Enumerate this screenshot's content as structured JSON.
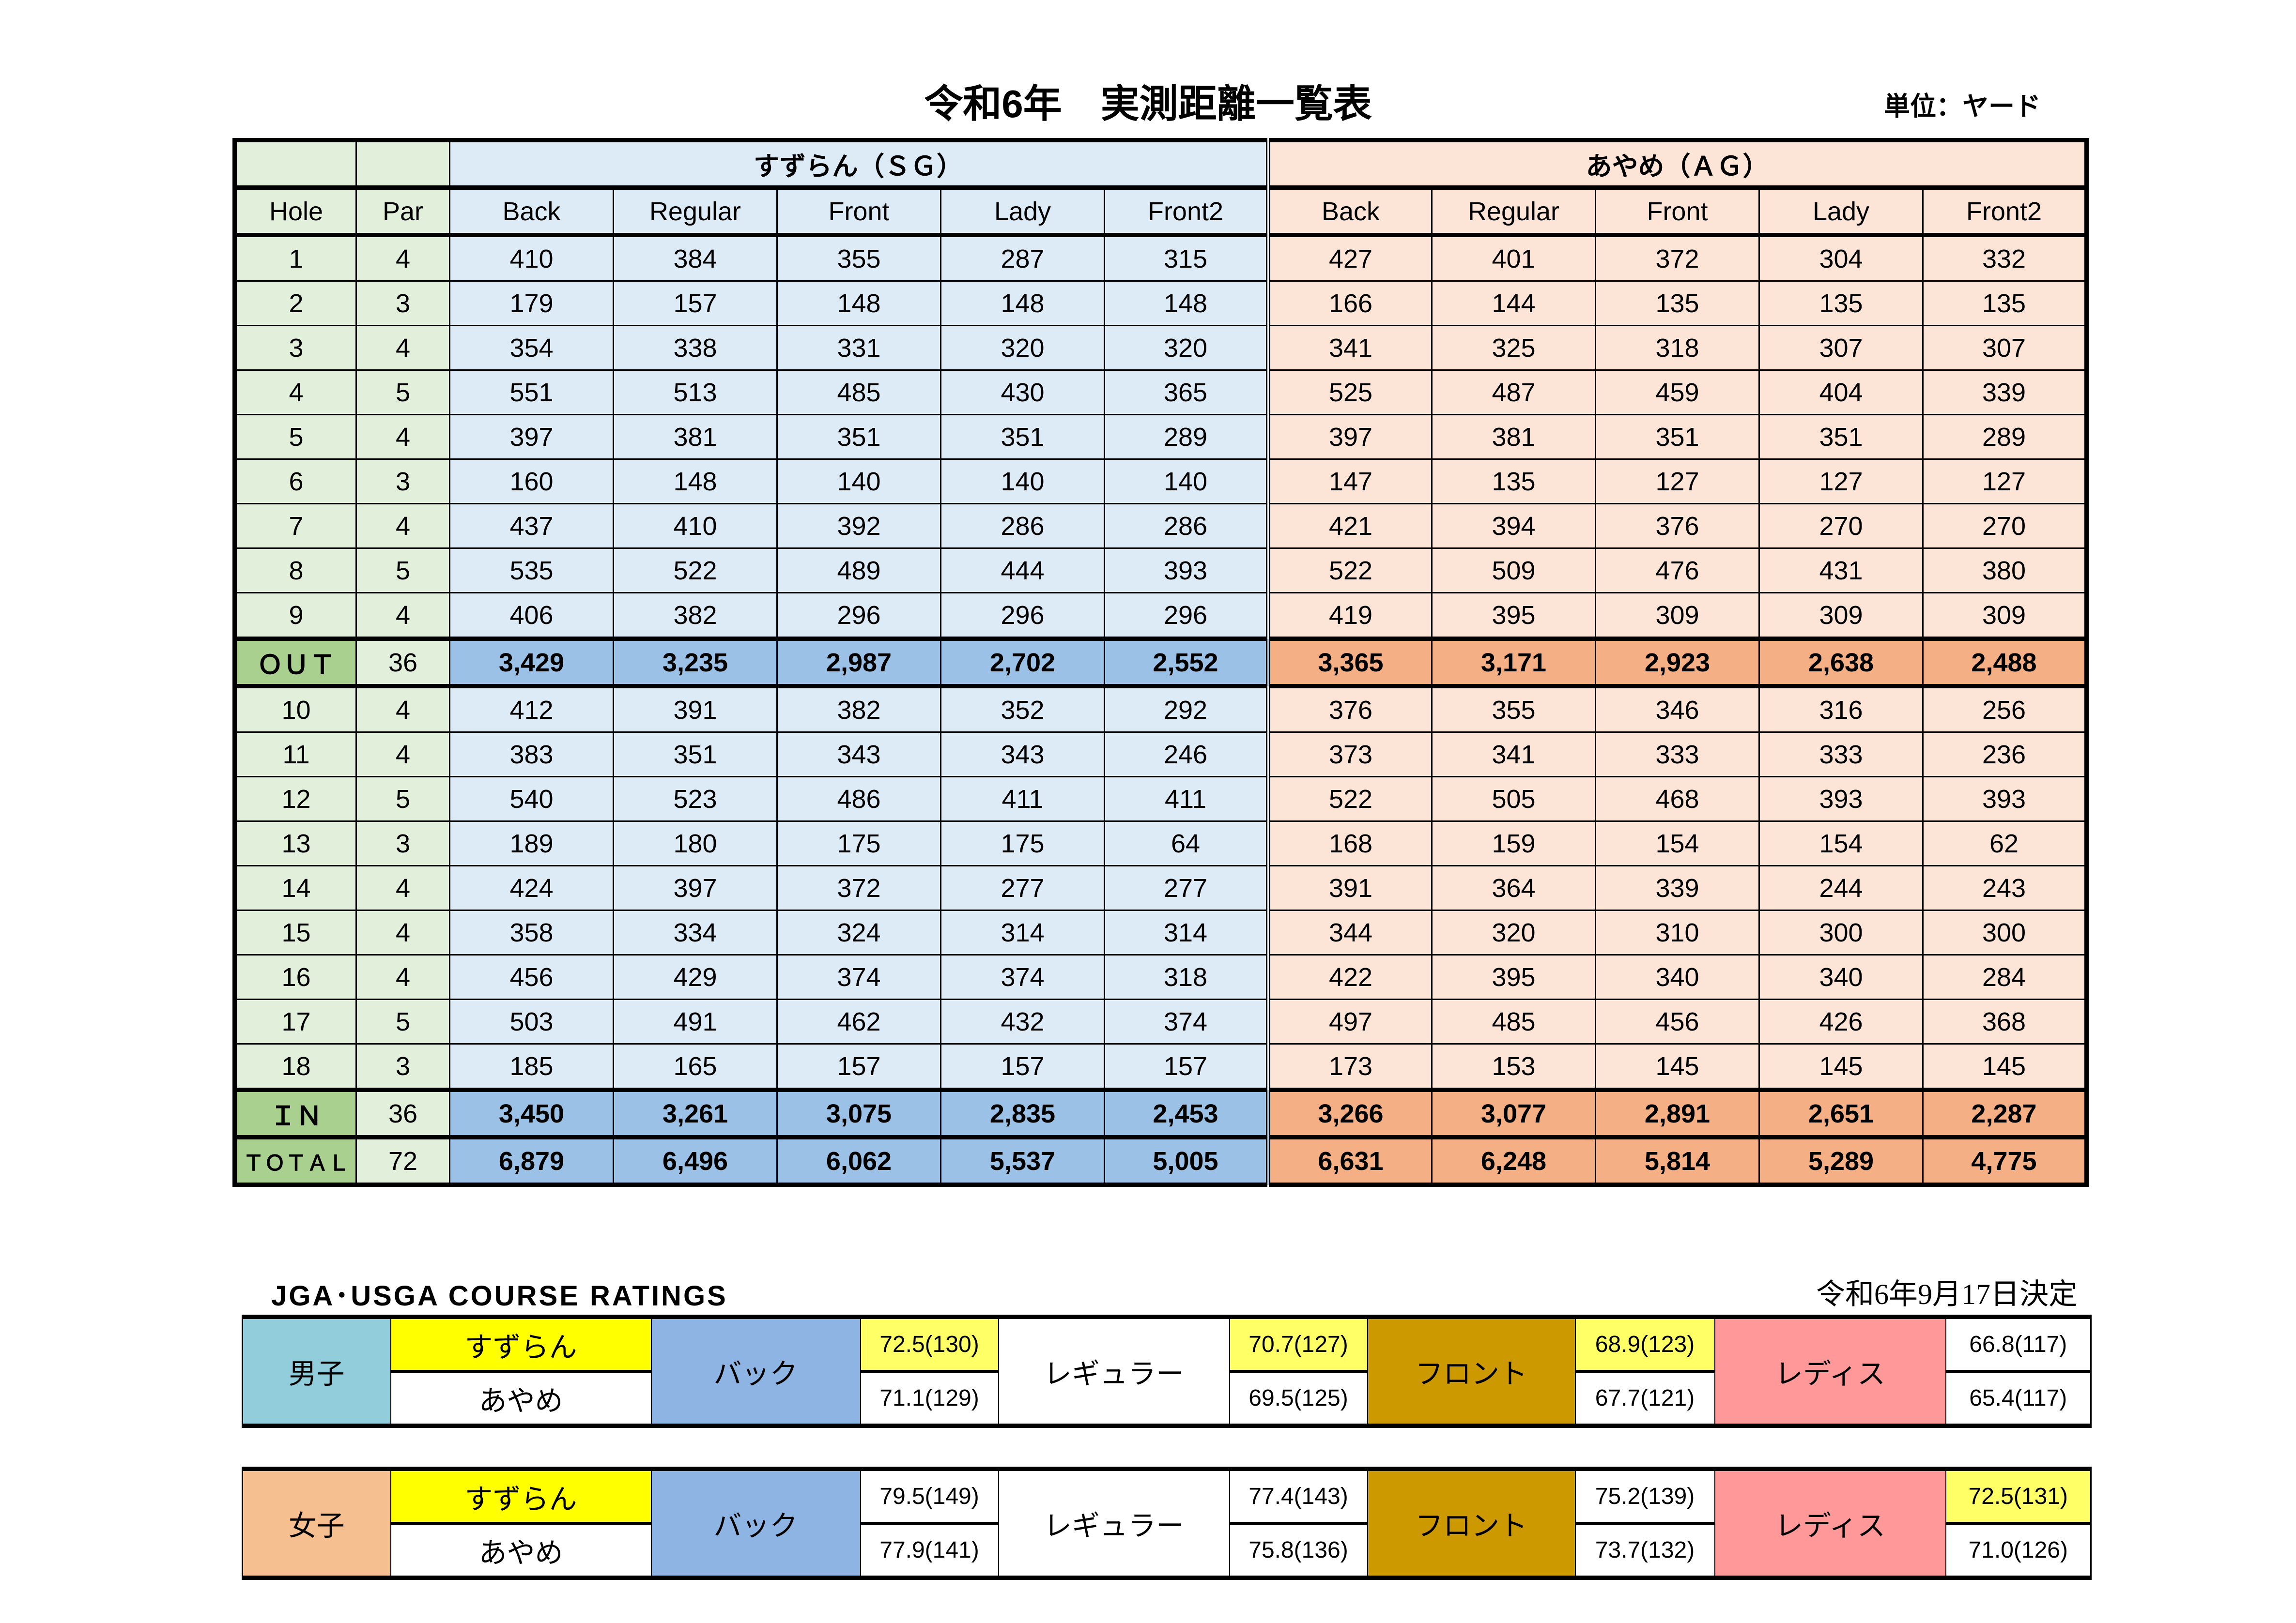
{
  "title": "令和6年　実測距離一覧表",
  "unit": "単位：ヤード",
  "header": {
    "hole": "Hole",
    "par": "Par",
    "sg_course": "すずらん（ＳＧ）",
    "ag_course": "あやめ（ＡＧ）",
    "tees": [
      "Back",
      "Regular",
      "Front",
      "Lady",
      "Front2"
    ]
  },
  "rows": [
    {
      "hole": "1",
      "par": "4",
      "sg": [
        "410",
        "384",
        "355",
        "287",
        "315"
      ],
      "ag": [
        "427",
        "401",
        "372",
        "304",
        "332"
      ]
    },
    {
      "hole": "2",
      "par": "3",
      "sg": [
        "179",
        "157",
        "148",
        "148",
        "148"
      ],
      "ag": [
        "166",
        "144",
        "135",
        "135",
        "135"
      ]
    },
    {
      "hole": "3",
      "par": "4",
      "sg": [
        "354",
        "338",
        "331",
        "320",
        "320"
      ],
      "ag": [
        "341",
        "325",
        "318",
        "307",
        "307"
      ]
    },
    {
      "hole": "4",
      "par": "5",
      "sg": [
        "551",
        "513",
        "485",
        "430",
        "365"
      ],
      "ag": [
        "525",
        "487",
        "459",
        "404",
        "339"
      ]
    },
    {
      "hole": "5",
      "par": "4",
      "sg": [
        "397",
        "381",
        "351",
        "351",
        "289"
      ],
      "ag": [
        "397",
        "381",
        "351",
        "351",
        "289"
      ]
    },
    {
      "hole": "6",
      "par": "3",
      "sg": [
        "160",
        "148",
        "140",
        "140",
        "140"
      ],
      "ag": [
        "147",
        "135",
        "127",
        "127",
        "127"
      ]
    },
    {
      "hole": "7",
      "par": "4",
      "sg": [
        "437",
        "410",
        "392",
        "286",
        "286"
      ],
      "ag": [
        "421",
        "394",
        "376",
        "270",
        "270"
      ]
    },
    {
      "hole": "8",
      "par": "5",
      "sg": [
        "535",
        "522",
        "489",
        "444",
        "393"
      ],
      "ag": [
        "522",
        "509",
        "476",
        "431",
        "380"
      ]
    },
    {
      "hole": "9",
      "par": "4",
      "sg": [
        "406",
        "382",
        "296",
        "296",
        "296"
      ],
      "ag": [
        "419",
        "395",
        "309",
        "309",
        "309"
      ]
    },
    {
      "hole": "ＯＵＴ",
      "par": "36",
      "total": true,
      "sg": [
        "3,429",
        "3,235",
        "2,987",
        "2,702",
        "2,552"
      ],
      "ag": [
        "3,365",
        "3,171",
        "2,923",
        "2,638",
        "2,488"
      ]
    },
    {
      "hole": "10",
      "par": "4",
      "sg": [
        "412",
        "391",
        "382",
        "352",
        "292"
      ],
      "ag": [
        "376",
        "355",
        "346",
        "316",
        "256"
      ]
    },
    {
      "hole": "11",
      "par": "4",
      "sg": [
        "383",
        "351",
        "343",
        "343",
        "246"
      ],
      "ag": [
        "373",
        "341",
        "333",
        "333",
        "236"
      ]
    },
    {
      "hole": "12",
      "par": "5",
      "sg": [
        "540",
        "523",
        "486",
        "411",
        "411"
      ],
      "ag": [
        "522",
        "505",
        "468",
        "393",
        "393"
      ]
    },
    {
      "hole": "13",
      "par": "3",
      "sg": [
        "189",
        "180",
        "175",
        "175",
        "64"
      ],
      "ag": [
        "168",
        "159",
        "154",
        "154",
        "62"
      ]
    },
    {
      "hole": "14",
      "par": "4",
      "sg": [
        "424",
        "397",
        "372",
        "277",
        "277"
      ],
      "ag": [
        "391",
        "364",
        "339",
        "244",
        "243"
      ]
    },
    {
      "hole": "15",
      "par": "4",
      "sg": [
        "358",
        "334",
        "324",
        "314",
        "314"
      ],
      "ag": [
        "344",
        "320",
        "310",
        "300",
        "300"
      ]
    },
    {
      "hole": "16",
      "par": "4",
      "sg": [
        "456",
        "429",
        "374",
        "374",
        "318"
      ],
      "ag": [
        "422",
        "395",
        "340",
        "340",
        "284"
      ]
    },
    {
      "hole": "17",
      "par": "5",
      "sg": [
        "503",
        "491",
        "462",
        "432",
        "374"
      ],
      "ag": [
        "497",
        "485",
        "456",
        "426",
        "368"
      ]
    },
    {
      "hole": "18",
      "par": "3",
      "sg": [
        "185",
        "165",
        "157",
        "157",
        "157"
      ],
      "ag": [
        "173",
        "153",
        "145",
        "145",
        "145"
      ]
    },
    {
      "hole": "ＩＮ",
      "par": "36",
      "total": true,
      "sg": [
        "3,450",
        "3,261",
        "3,075",
        "2,835",
        "2,453"
      ],
      "ag": [
        "3,266",
        "3,077",
        "2,891",
        "2,651",
        "2,287"
      ]
    },
    {
      "hole": "ＴＯＴＡＬ",
      "par": "72",
      "total": true,
      "sg": [
        "6,879",
        "6,496",
        "6,062",
        "5,537",
        "5,005"
      ],
      "ag": [
        "6,631",
        "6,248",
        "5,814",
        "5,289",
        "4,775"
      ]
    }
  ],
  "ratings": {
    "label": "JGA･USGA  COURSE  RATINGS",
    "date": "令和6年9月17日決定",
    "tee_labels": [
      "バック",
      "レギュラー",
      "フロント",
      "レディス"
    ],
    "course_names": [
      "すずらん",
      "あやめ"
    ],
    "groups": [
      {
        "name": "男子",
        "sg": [
          "72.5(130)",
          "70.7(127)",
          "68.9(123)",
          "66.8(117)"
        ],
        "ag": [
          "71.1(129)",
          "69.5(125)",
          "67.7(121)",
          "65.4(117)"
        ],
        "sg_highlight": [
          true,
          true,
          true,
          false
        ]
      },
      {
        "name": "女子",
        "sg": [
          "79.5(149)",
          "77.4(143)",
          "75.2(139)",
          "72.5(131)"
        ],
        "ag": [
          "77.9(141)",
          "75.8(136)",
          "73.7(132)",
          "71.0(126)"
        ],
        "sg_highlight": [
          false,
          false,
          false,
          true
        ]
      }
    ]
  },
  "colors": {
    "hole_bg": "#e2efda",
    "hole_total_bg": "#a9d08e",
    "sg_bg": "#ddebf7",
    "sg_total_bg": "#9bc2e6",
    "ag_bg": "#fce4d6",
    "ag_total_bg": "#f4b084",
    "men": "#92cddc",
    "women": "#f6bf90",
    "back": "#8eb4e3",
    "front": "#cc9900",
    "lady": "#ff9999",
    "highlight": "#ffff66"
  }
}
